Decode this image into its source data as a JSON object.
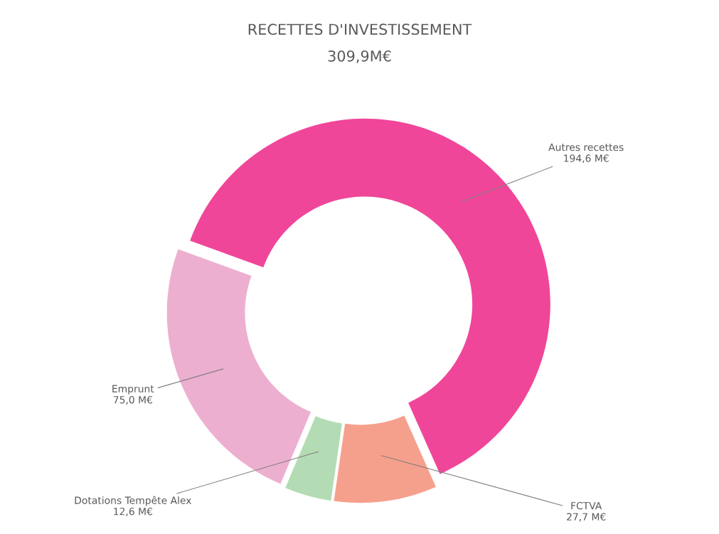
{
  "chart_data": {
    "type": "donut",
    "title": "RECETTES D'INVESTISSEMENT",
    "subtitle": "309,9M€",
    "categories": [
      "Autres recettes",
      "FCTVA",
      "Dotations Tempête Alex",
      "Emprunt"
    ],
    "values": [
      194.6,
      27.7,
      12.6,
      75.0
    ],
    "colors": [
      "#f0469a",
      "#f5a08c",
      "#b4dcb4",
      "#edafd0"
    ],
    "value_labels": [
      "194,6 M€",
      "27,7 M€",
      "12,6 M€",
      "75,0 M€"
    ],
    "legend": false
  }
}
